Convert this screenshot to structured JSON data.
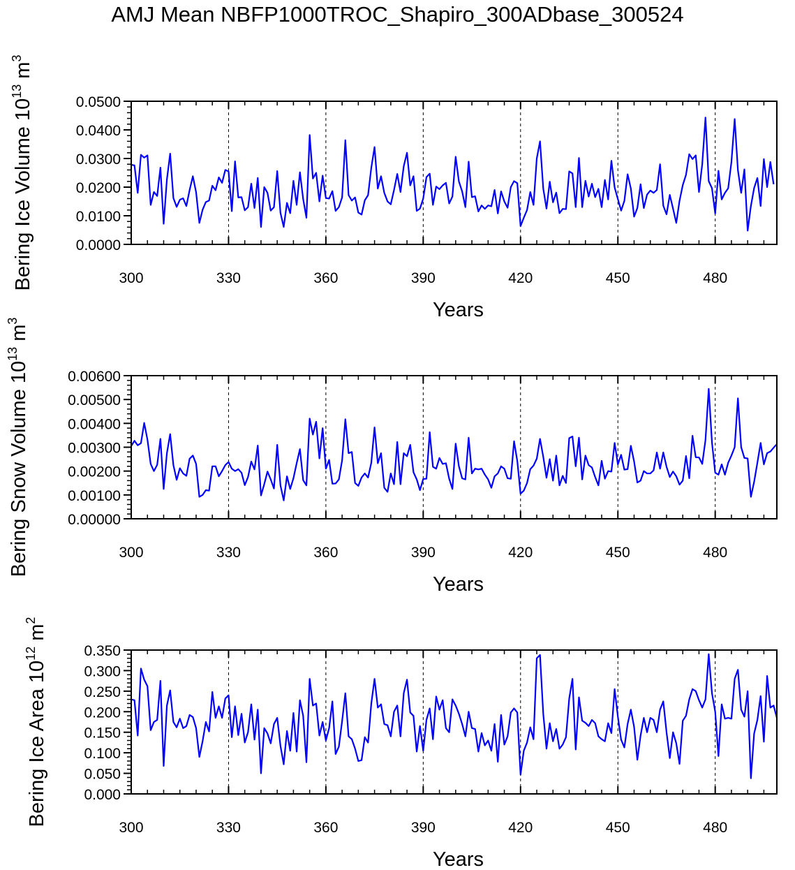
{
  "title": "AMJ Mean NBFP1000TROC_Shapiro_300ADbase_300524",
  "colors": {
    "line": "#0000ff",
    "axis": "#000000",
    "reference_lines": "#000000"
  },
  "chart_data": [
    {
      "type": "line",
      "xlabel": "Years",
      "ylabel_parts": {
        "main": "Bering Ice Volume 10",
        "exp": "13",
        "unit": " m",
        "unit_exp": "3"
      },
      "xlim": [
        300,
        499
      ],
      "ylim": [
        0.0,
        0.05
      ],
      "xticks": [
        "300",
        "330",
        "360",
        "390",
        "420",
        "450",
        "480"
      ],
      "xtick_values": [
        300,
        330,
        360,
        390,
        420,
        450,
        480
      ],
      "yticks": [
        "0.0000",
        "0.0100",
        "0.0200",
        "0.0300",
        "0.0400",
        "0.0500"
      ],
      "ytick_values": [
        0.0,
        0.01,
        0.02,
        0.03,
        0.04,
        0.05
      ],
      "reference_lines_x": [
        330,
        360,
        390,
        420,
        450,
        480
      ],
      "reference_line_style": "dashed",
      "grid": false,
      "series": [
        {
          "x_start": 300,
          "x_step": 1,
          "values": [
            0.0278,
            0.0276,
            0.018,
            0.0313,
            0.0303,
            0.0311,
            0.0138,
            0.0183,
            0.0169,
            0.0268,
            0.0072,
            0.0227,
            0.0317,
            0.0162,
            0.0131,
            0.0156,
            0.0161,
            0.0134,
            0.019,
            0.0238,
            0.0182,
            0.0075,
            0.0121,
            0.0148,
            0.0153,
            0.0205,
            0.0189,
            0.0234,
            0.0215,
            0.026,
            0.0255,
            0.0116,
            0.029,
            0.0164,
            0.0165,
            0.0119,
            0.013,
            0.0212,
            0.0127,
            0.0232,
            0.0061,
            0.02,
            0.018,
            0.0118,
            0.013,
            0.0256,
            0.011,
            0.0061,
            0.0145,
            0.0109,
            0.0222,
            0.0138,
            0.0252,
            0.0158,
            0.0093,
            0.0382,
            0.023,
            0.025,
            0.015,
            0.024,
            0.0162,
            0.016,
            0.0186,
            0.0117,
            0.013,
            0.0164,
            0.0364,
            0.0172,
            0.0153,
            0.0164,
            0.0111,
            0.0104,
            0.0154,
            0.0172,
            0.0268,
            0.034,
            0.0195,
            0.0238,
            0.018,
            0.015,
            0.014,
            0.019,
            0.0246,
            0.0183,
            0.0273,
            0.032,
            0.0206,
            0.0238,
            0.0117,
            0.0125,
            0.016,
            0.0235,
            0.0247,
            0.0138,
            0.0202,
            0.0193,
            0.0206,
            0.0215,
            0.0143,
            0.0167,
            0.0306,
            0.022,
            0.0185,
            0.013,
            0.0289,
            0.0165,
            0.0168,
            0.0115,
            0.0136,
            0.0124,
            0.0136,
            0.0133,
            0.019,
            0.0108,
            0.0185,
            0.015,
            0.0128,
            0.02,
            0.0221,
            0.0214,
            0.0064,
            0.0093,
            0.012,
            0.0183,
            0.0138,
            0.03,
            0.036,
            0.0195,
            0.0125,
            0.0219,
            0.0147,
            0.0181,
            0.0109,
            0.0124,
            0.0123,
            0.0255,
            0.0248,
            0.013,
            0.0302,
            0.013,
            0.0222,
            0.0167,
            0.0212,
            0.0165,
            0.0194,
            0.013,
            0.0225,
            0.0157,
            0.0292,
            0.0199,
            0.0158,
            0.0118,
            0.0152,
            0.0245,
            0.0195,
            0.0097,
            0.0127,
            0.021,
            0.0127,
            0.0174,
            0.0188,
            0.018,
            0.019,
            0.028,
            0.0135,
            0.0105,
            0.0173,
            0.0125,
            0.0075,
            0.0152,
            0.0207,
            0.0243,
            0.0315,
            0.0298,
            0.0311,
            0.0183,
            0.028,
            0.0443,
            0.0221,
            0.0196,
            0.0108,
            0.0257,
            0.0157,
            0.018,
            0.0196,
            0.0288,
            0.0438,
            0.0259,
            0.018,
            0.0262,
            0.0048,
            0.0134,
            0.0197,
            0.0232,
            0.0134,
            0.0298,
            0.02,
            0.0288,
            0.021
          ]
        }
      ]
    },
    {
      "type": "line",
      "xlabel": "Years",
      "ylabel_parts": {
        "main": "Bering Snow Volume 10",
        "exp": "13",
        "unit": " m",
        "unit_exp": "3"
      },
      "xlim": [
        300,
        499
      ],
      "ylim": [
        0.0,
        0.006
      ],
      "xticks": [
        "300",
        "330",
        "360",
        "390",
        "420",
        "450",
        "480"
      ],
      "xtick_values": [
        300,
        330,
        360,
        390,
        420,
        450,
        480
      ],
      "yticks": [
        "0.00000",
        "0.00100",
        "0.00200",
        "0.00300",
        "0.00400",
        "0.00500",
        "0.00600"
      ],
      "ytick_values": [
        0.0,
        0.001,
        0.002,
        0.003,
        0.004,
        0.005,
        0.006
      ],
      "reference_lines_x": [
        330,
        360,
        390,
        420,
        450,
        480
      ],
      "reference_line_style": "dashed",
      "grid": false,
      "series": [
        {
          "x_start": 300,
          "x_step": 1,
          "values": [
            0.00305,
            0.00327,
            0.00308,
            0.00317,
            0.00402,
            0.00332,
            0.0023,
            0.002,
            0.00226,
            0.00335,
            0.00125,
            0.00275,
            0.00355,
            0.00225,
            0.00163,
            0.00212,
            0.0019,
            0.0018,
            0.00252,
            0.00265,
            0.0023,
            0.00092,
            0.001,
            0.0012,
            0.00118,
            0.0022,
            0.0022,
            0.00178,
            0.002,
            0.00225,
            0.00238,
            0.0021,
            0.002,
            0.00208,
            0.00193,
            0.00141,
            0.00175,
            0.0024,
            0.00207,
            0.00307,
            0.00098,
            0.00145,
            0.00198,
            0.00165,
            0.00127,
            0.0031,
            0.0014,
            0.00077,
            0.00178,
            0.00125,
            0.0017,
            0.00233,
            0.00292,
            0.00162,
            0.0014,
            0.0042,
            0.00353,
            0.00407,
            0.00253,
            0.0038,
            0.0021,
            0.00247,
            0.00147,
            0.00148,
            0.00165,
            0.00245,
            0.00417,
            0.00275,
            0.0028,
            0.0015,
            0.00138,
            0.00173,
            0.0019,
            0.00173,
            0.00235,
            0.00383,
            0.00233,
            0.00275,
            0.0013,
            0.00113,
            0.0019,
            0.00145,
            0.00322,
            0.00145,
            0.00275,
            0.00262,
            0.0031,
            0.00195,
            0.00165,
            0.0012,
            0.00167,
            0.00168,
            0.00363,
            0.00218,
            0.0021,
            0.00255,
            0.0023,
            0.00233,
            0.00168,
            0.00125,
            0.00315,
            0.0022,
            0.0017,
            0.00165,
            0.0034,
            0.0019,
            0.0021,
            0.00207,
            0.0021,
            0.00185,
            0.00165,
            0.0013,
            0.00178,
            0.0019,
            0.0022,
            0.0021,
            0.0017,
            0.00168,
            0.00325,
            0.00242,
            0.00105,
            0.00118,
            0.0015,
            0.00208,
            0.00223,
            0.00252,
            0.00335,
            0.0026,
            0.00172,
            0.0025,
            0.0016,
            0.00265,
            0.0014,
            0.0018,
            0.0015,
            0.00338,
            0.00345,
            0.0022,
            0.0034,
            0.00165,
            0.00265,
            0.00225,
            0.00215,
            0.00175,
            0.0014,
            0.00243,
            0.00168,
            0.002,
            0.00198,
            0.00318,
            0.00228,
            0.00268,
            0.00206,
            0.00208,
            0.00306,
            0.0024,
            0.00152,
            0.0016,
            0.002,
            0.0019,
            0.0019,
            0.00203,
            0.00278,
            0.0021,
            0.00278,
            0.00218,
            0.00175,
            0.00198,
            0.00178,
            0.00143,
            0.0016,
            0.00263,
            0.0017,
            0.00348,
            0.00258,
            0.00257,
            0.0023,
            0.0033,
            0.00545,
            0.0032,
            0.00193,
            0.00185,
            0.00228,
            0.00185,
            0.00235,
            0.00265,
            0.003,
            0.00505,
            0.003,
            0.00255,
            0.00253,
            0.00092,
            0.00155,
            0.00235,
            0.00318,
            0.00228,
            0.00275,
            0.00282,
            0.00298,
            0.00313
          ]
        }
      ]
    },
    {
      "type": "line",
      "xlabel": "Years",
      "ylabel_parts": {
        "main": "Bering Ice Area 10",
        "exp": "12",
        "unit": " m",
        "unit_exp": "2"
      },
      "xlim": [
        300,
        499
      ],
      "ylim": [
        0.0,
        0.35
      ],
      "xticks": [
        "300",
        "330",
        "360",
        "390",
        "420",
        "450",
        "480"
      ],
      "xtick_values": [
        300,
        330,
        360,
        390,
        420,
        450,
        480
      ],
      "yticks": [
        "0.000",
        "0.050",
        "0.100",
        "0.150",
        "0.200",
        "0.250",
        "0.300",
        "0.350"
      ],
      "ytick_values": [
        0.0,
        0.05,
        0.1,
        0.15,
        0.2,
        0.25,
        0.3,
        0.35
      ],
      "reference_lines_x": [
        330,
        360,
        390,
        420,
        450,
        480
      ],
      "reference_line_style": "dashed",
      "grid": false,
      "series": [
        {
          "x_start": 300,
          "x_step": 1,
          "values": [
            0.23,
            0.228,
            0.142,
            0.305,
            0.278,
            0.262,
            0.155,
            0.175,
            0.18,
            0.275,
            0.068,
            0.215,
            0.252,
            0.175,
            0.162,
            0.183,
            0.16,
            0.165,
            0.192,
            0.187,
            0.16,
            0.09,
            0.128,
            0.175,
            0.152,
            0.248,
            0.185,
            0.213,
            0.185,
            0.232,
            0.24,
            0.138,
            0.213,
            0.143,
            0.195,
            0.125,
            0.15,
            0.218,
            0.132,
            0.205,
            0.05,
            0.16,
            0.147,
            0.123,
            0.17,
            0.185,
            0.117,
            0.072,
            0.153,
            0.105,
            0.197,
            0.103,
            0.228,
            0.19,
            0.077,
            0.28,
            0.215,
            0.22,
            0.142,
            0.175,
            0.13,
            0.16,
            0.225,
            0.097,
            0.115,
            0.177,
            0.245,
            0.14,
            0.133,
            0.11,
            0.08,
            0.082,
            0.138,
            0.125,
            0.22,
            0.28,
            0.21,
            0.218,
            0.17,
            0.167,
            0.14,
            0.2,
            0.215,
            0.14,
            0.245,
            0.278,
            0.198,
            0.19,
            0.103,
            0.165,
            0.105,
            0.18,
            0.208,
            0.133,
            0.237,
            0.205,
            0.228,
            0.16,
            0.15,
            0.23,
            0.215,
            0.195,
            0.17,
            0.14,
            0.2,
            0.16,
            0.158,
            0.103,
            0.148,
            0.118,
            0.13,
            0.105,
            0.17,
            0.078,
            0.192,
            0.12,
            0.14,
            0.198,
            0.208,
            0.198,
            0.047,
            0.105,
            0.125,
            0.162,
            0.133,
            0.33,
            0.338,
            0.195,
            0.11,
            0.172,
            0.128,
            0.158,
            0.11,
            0.12,
            0.138,
            0.232,
            0.28,
            0.108,
            0.235,
            0.178,
            0.173,
            0.165,
            0.18,
            0.172,
            0.14,
            0.133,
            0.128,
            0.172,
            0.148,
            0.255,
            0.188,
            0.132,
            0.113,
            0.17,
            0.205,
            0.163,
            0.083,
            0.142,
            0.185,
            0.15,
            0.185,
            0.18,
            0.15,
            0.205,
            0.225,
            0.15,
            0.087,
            0.15,
            0.123,
            0.073,
            0.178,
            0.19,
            0.23,
            0.255,
            0.25,
            0.228,
            0.21,
            0.23,
            0.34,
            0.245,
            0.2,
            0.092,
            0.218,
            0.183,
            0.185,
            0.183,
            0.28,
            0.302,
            0.205,
            0.188,
            0.25,
            0.038,
            0.147,
            0.18,
            0.238,
            0.127,
            0.287,
            0.21,
            0.215,
            0.185
          ]
        }
      ]
    }
  ]
}
